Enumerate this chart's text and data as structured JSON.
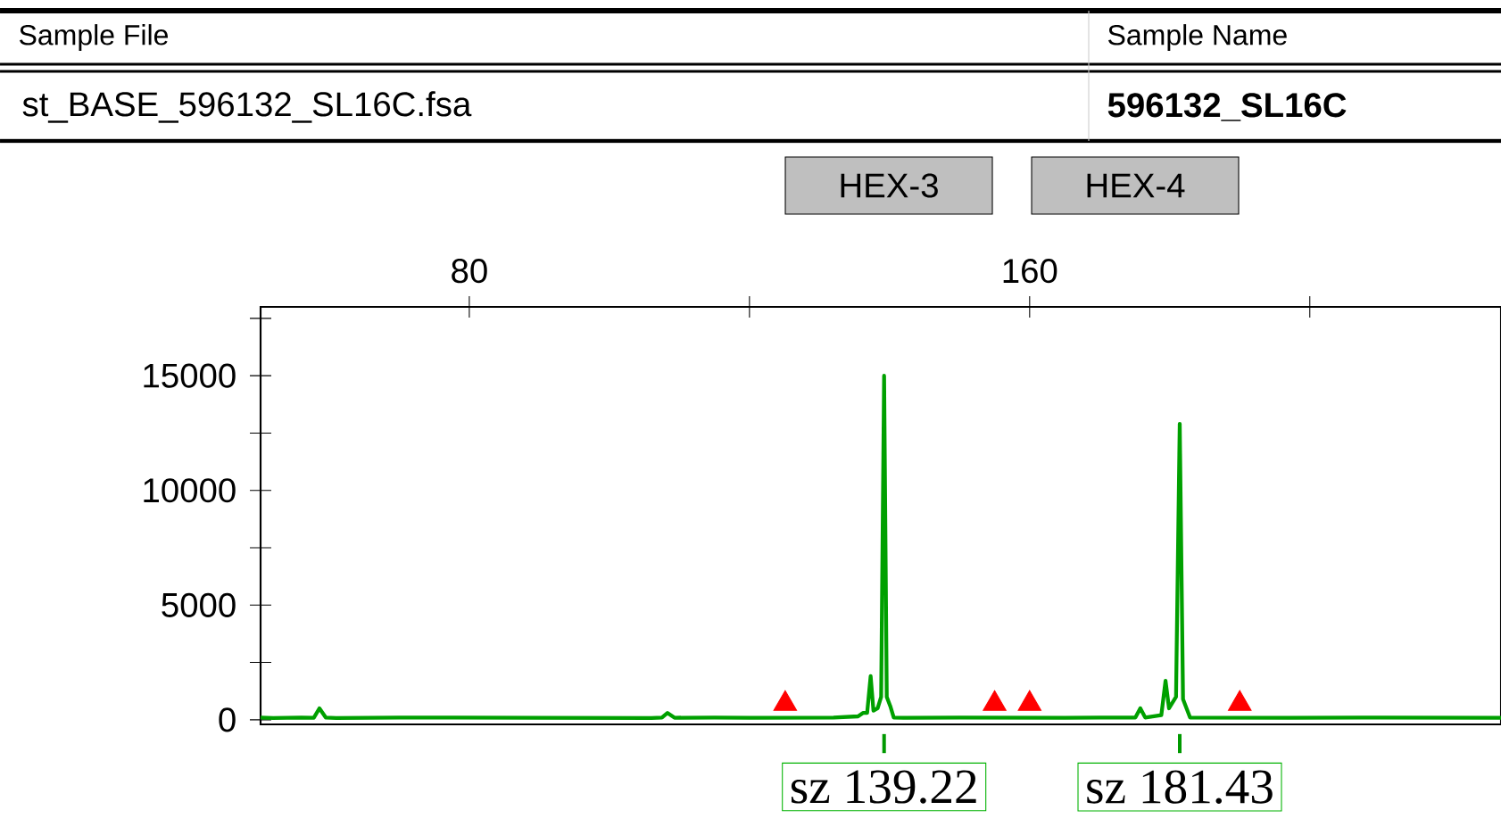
{
  "chart_data": {
    "type": "line",
    "annotations": [
      "Sample File",
      "Sample Name",
      "st_BASE_596132_SL16C.fsa",
      "596132_SL16C",
      "HEX-3",
      "HEX-4",
      {
        "text": "sz 139.22",
        "x": 139.22,
        "y": 0
      },
      {
        "text": "sz 181.43",
        "x": 181.43,
        "y": 0
      }
    ],
    "xlim": [
      50.2,
      227.3
    ],
    "xticks": [
      80,
      {
        "value": 120,
        "label": null
      },
      160,
      {
        "value": 200,
        "label": null
      }
    ],
    "ylim": [
      -200,
      18000
    ],
    "yticks": [
      0,
      {
        "value": 2500,
        "label": null
      },
      5000,
      {
        "value": 7500,
        "label": null
      },
      10000,
      {
        "value": 12500,
        "label": null
      },
      15000,
      {
        "value": 17500,
        "label": null
      }
    ],
    "series": [
      {
        "color": "#00a000",
        "x": [
          50.2,
          52,
          56,
          57.8,
          58.6,
          59.5,
          61,
          70,
          90,
          106,
          107.5,
          108.3,
          109.3,
          115,
          120,
          132,
          135.5,
          136.2,
          136.8,
          137.3,
          137.7,
          138.3,
          138.8,
          139.22,
          139.6,
          140.1,
          140.6,
          142,
          150,
          165,
          170,
          175.1,
          175.8,
          176.5,
          178.8,
          179.4,
          179.9,
          180.9,
          181.43,
          181.9,
          182.4,
          182.9,
          197,
          210,
          227.3
        ],
        "values": [
          100,
          80,
          100,
          90,
          500,
          100,
          80,
          100,
          90,
          80,
          100,
          300,
          90,
          100,
          90,
          100,
          150,
          300,
          300,
          1900,
          400,
          500,
          1000,
          15000,
          1000,
          600,
          100,
          90,
          100,
          90,
          100,
          100,
          500,
          100,
          200,
          1700,
          500,
          1000,
          12900,
          900,
          500,
          100,
          90,
          100,
          90
        ]
      },
      {
        "type": "scatter",
        "color": "#ff0000",
        "marker": "triangle",
        "x": [
          125.1,
          155,
          160,
          190
        ],
        "values": [
          700,
          700,
          700,
          700
        ]
      }
    ]
  }
}
